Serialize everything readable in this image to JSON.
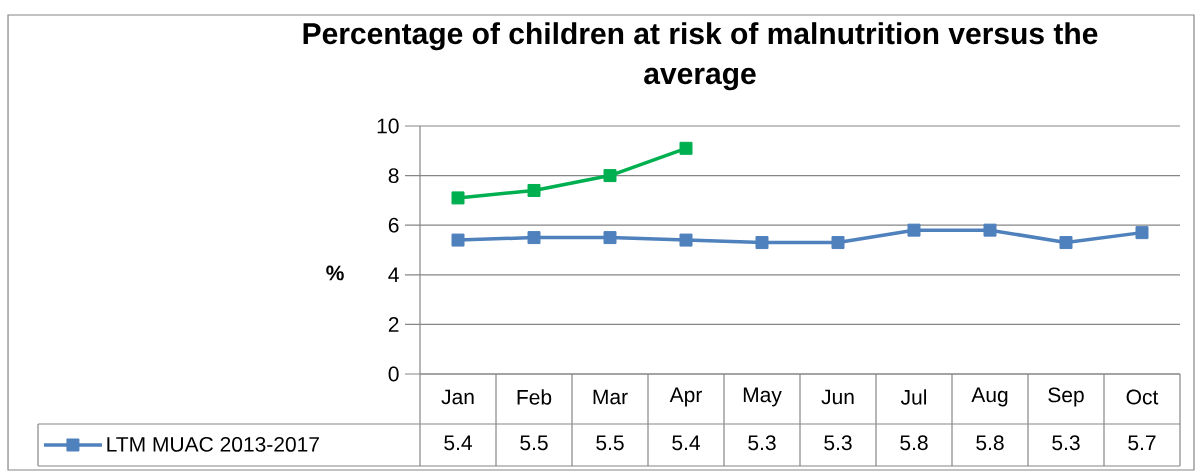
{
  "chart_data": {
    "type": "line",
    "title": "Percentage of children at risk of malnutrition versus the average",
    "ylabel": "%",
    "categories": [
      "Jan",
      "Feb",
      "Mar",
      "Apr",
      "May",
      "Jun",
      "Jul",
      "Aug",
      "Sep",
      "Oct"
    ],
    "series": [
      {
        "name": "LTM MUAC 2013-2017",
        "color": "#4f81bd",
        "values": [
          5.4,
          5.5,
          5.5,
          5.4,
          5.3,
          5.3,
          5.8,
          5.8,
          5.3,
          5.7
        ],
        "value_labels": [
          "5.4",
          "5.5",
          "5.5",
          "5.4",
          "5.3",
          "5.3",
          "5.8",
          "5.8",
          "5.3",
          "5.7"
        ]
      },
      {
        "color": "#00b050",
        "values": [
          7.1,
          7.4,
          8.0,
          9.1,
          null,
          null,
          null,
          null,
          null,
          null
        ]
      }
    ],
    "ylim": [
      0,
      10
    ],
    "yticks": [
      0,
      2,
      4,
      6,
      8,
      10
    ],
    "grid": "y",
    "legend": "bottom left",
    "marker": "square",
    "line_style": "solid"
  }
}
